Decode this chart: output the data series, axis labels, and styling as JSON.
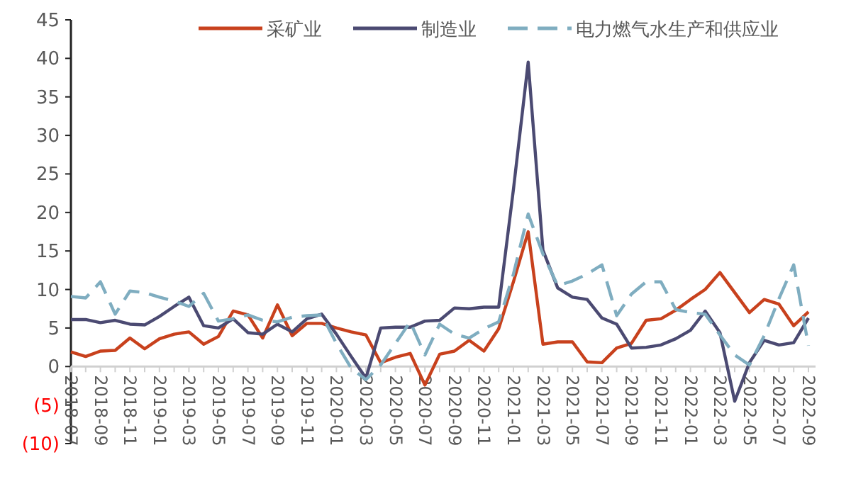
{
  "chart_data": {
    "type": "line",
    "categories": [
      "2018-07",
      null,
      "2018-09",
      null,
      "2018-11",
      null,
      "2019-01",
      null,
      "2019-03",
      null,
      "2019-05",
      null,
      "2019-07",
      null,
      "2019-09",
      null,
      "2019-11",
      null,
      "2020-01",
      null,
      "2020-03",
      null,
      "2020-05",
      null,
      "2020-07",
      null,
      "2020-09",
      null,
      "2020-11",
      null,
      "2021-01",
      null,
      "2021-03",
      null,
      "2021-05",
      null,
      "2021-07",
      null,
      "2021-09",
      null,
      "2021-11",
      null,
      "2022-01",
      null,
      "2022-03",
      null,
      "2022-05",
      null,
      "2022-07",
      null,
      "2022-09"
    ],
    "series": [
      {
        "name": "采矿业",
        "color": "#c8411d",
        "line_style": "solid",
        "values": [
          1.9,
          1.3,
          2.0,
          2.1,
          3.7,
          2.3,
          3.6,
          4.2,
          4.5,
          2.9,
          3.9,
          7.2,
          6.7,
          3.7,
          8.0,
          4.0,
          5.6,
          5.6,
          5.0,
          4.5,
          4.1,
          0.5,
          1.2,
          1.7,
          -2.4,
          1.6,
          2.0,
          3.4,
          2.0,
          4.9,
          11.0,
          17.5,
          2.9,
          3.2,
          3.2,
          0.6,
          0.5,
          2.4,
          3.0,
          6.0,
          6.2,
          7.3,
          8.7,
          10.0,
          12.2,
          9.6,
          7.0,
          8.7,
          8.1,
          5.3,
          7.1
        ]
      },
      {
        "name": "制造业",
        "color": "#4b4a72",
        "line_style": "solid",
        "values": [
          6.1,
          6.1,
          5.7,
          6.0,
          5.5,
          5.4,
          6.5,
          7.8,
          9.0,
          5.3,
          5.0,
          6.2,
          4.4,
          4.2,
          5.5,
          4.5,
          6.2,
          6.8,
          4.2,
          1.3,
          -1.5,
          5.0,
          5.1,
          5.1,
          5.9,
          6.0,
          7.6,
          7.5,
          7.7,
          7.7,
          23.0,
          39.5,
          15.1,
          10.2,
          9.0,
          8.7,
          6.3,
          5.5,
          2.4,
          2.5,
          2.8,
          3.6,
          4.7,
          7.2,
          4.4,
          -4.5,
          0.5,
          3.4,
          2.8,
          3.1,
          6.3
        ]
      },
      {
        "name": "电力燃气水生产和供应业",
        "color": "#7fadc0",
        "line_style": "dashed",
        "values": [
          9.1,
          8.9,
          11.0,
          6.8,
          9.8,
          9.6,
          9.0,
          8.5,
          7.8,
          9.5,
          5.9,
          6.2,
          6.7,
          6.0,
          5.8,
          6.4,
          6.6,
          6.7,
          3.0,
          -0.2,
          -1.7,
          0.2,
          3.0,
          5.8,
          1.5,
          5.5,
          4.2,
          3.7,
          4.9,
          5.8,
          12.0,
          19.8,
          14.6,
          10.5,
          11.1,
          12.0,
          13.2,
          6.6,
          9.4,
          11.0,
          11.0,
          7.4,
          7.0,
          6.8,
          4.1,
          1.5,
          0.2,
          4.0,
          8.8,
          13.2,
          2.7
        ]
      }
    ],
    "ylim": [
      -10,
      45
    ],
    "yticks": [
      {
        "value": -10,
        "label": "(10)"
      },
      {
        "value": -5,
        "label": "(5)"
      },
      0,
      5,
      10,
      15,
      20,
      25,
      30,
      35,
      40,
      45
    ],
    "legend": "top",
    "grid": false
  }
}
